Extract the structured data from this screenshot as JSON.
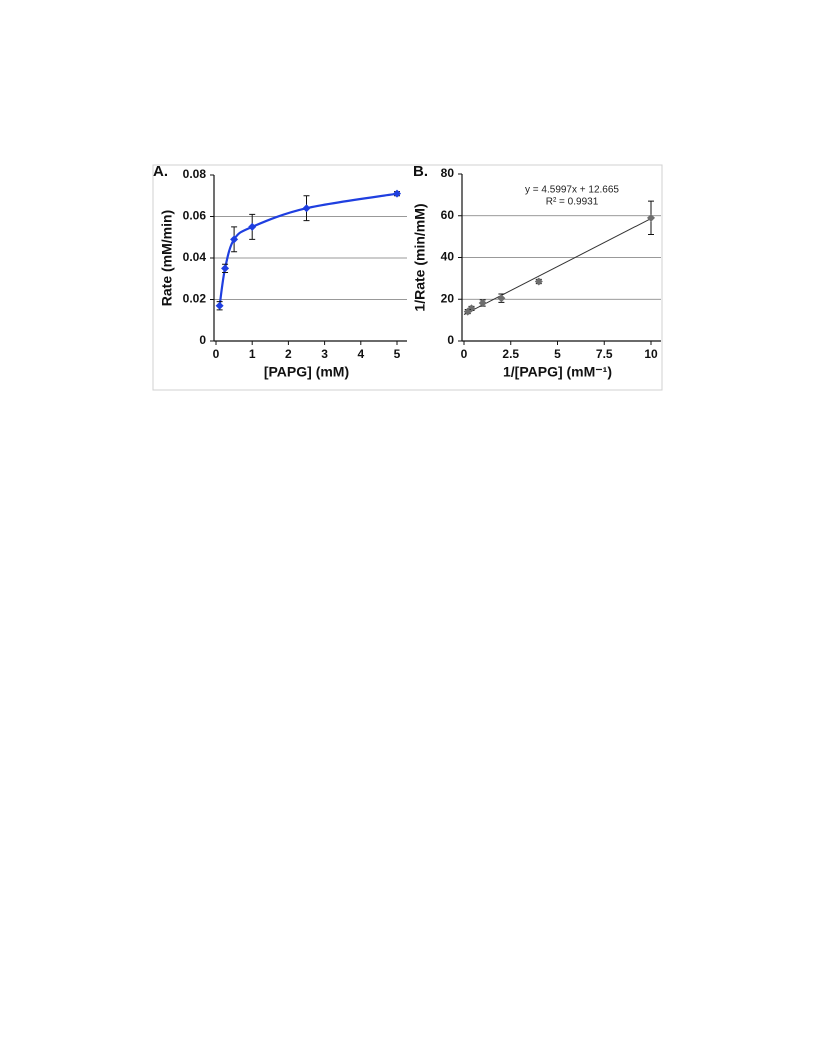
{
  "chart_data": [
    {
      "type": "line",
      "panel_label": "A.",
      "ylabel": "Rate  (mM/min)",
      "xlabel": "[PAPG] (mM)",
      "xlim": [
        0,
        5
      ],
      "xticks": [
        0,
        1,
        2,
        3,
        4,
        5
      ],
      "ylim": [
        0,
        0.08
      ],
      "yticks": [
        0,
        0.02,
        0.04,
        0.06,
        0.08
      ],
      "grid": true,
      "series": [
        {
          "color": "#1f3fe0",
          "x": [
            0.1,
            0.25,
            0.5,
            1,
            2.5,
            5
          ],
          "values": [
            0.017,
            0.035,
            0.049,
            0.055,
            0.064,
            0.071
          ],
          "errors": [
            0.002,
            0.002,
            0.006,
            0.006,
            0.006,
            0.001
          ]
        }
      ]
    },
    {
      "type": "scatter",
      "panel_label": "B.",
      "ylabel": "1/Rate  (min/mM)",
      "xlabel": "1/[PAPG] (mM⁻¹)",
      "xlim": [
        0,
        10
      ],
      "xticks": [
        0,
        2.5,
        5,
        7.5,
        10
      ],
      "ylim": [
        0,
        80
      ],
      "yticks": [
        0,
        20,
        40,
        60,
        80
      ],
      "grid": true,
      "annotations": [
        "y = 4.5997x + 12.665",
        "R² = 0.9931"
      ],
      "trendline": {
        "slope": 4.5997,
        "intercept": 12.665,
        "color": "#333333"
      },
      "series": [
        {
          "color": "#6e6e6e",
          "x": [
            10,
            4,
            2,
            1,
            0.4,
            0.2
          ],
          "values": [
            59,
            28.5,
            20.5,
            18.2,
            15.6,
            14.1
          ],
          "errors": [
            8,
            1,
            2,
            1.5,
            1,
            1
          ]
        }
      ]
    }
  ]
}
